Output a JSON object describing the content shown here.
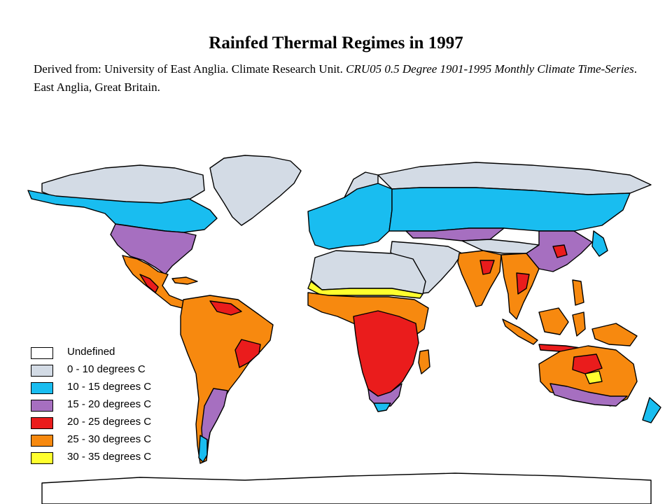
{
  "header": {
    "title": "Rainfed Thermal Regimes in 1997",
    "source_prefix": "Derived from: University of East Anglia.  Climate Research Unit.  ",
    "source_dataset": "CRU05 0.5 Degree 1901-1995 Monthly Climate Time-Series",
    "source_suffix": ".  East Anglia, Great Britain."
  },
  "legend": {
    "items": [
      {
        "label": "Undefined",
        "color": "#ffffff"
      },
      {
        "label": "0 - 10 degrees C",
        "color": "#d3dbe5"
      },
      {
        "label": "10 - 15 degrees C",
        "color": "#19bdf0"
      },
      {
        "label": "15 - 20 degrees C",
        "color": "#a66fc0"
      },
      {
        "label": "20 - 25 degrees C",
        "color": "#ea1c1c"
      },
      {
        "label": "25 - 30 degrees C",
        "color": "#f7890f"
      },
      {
        "label": "30 - 35 degrees C",
        "color": "#ffff2e"
      }
    ]
  }
}
